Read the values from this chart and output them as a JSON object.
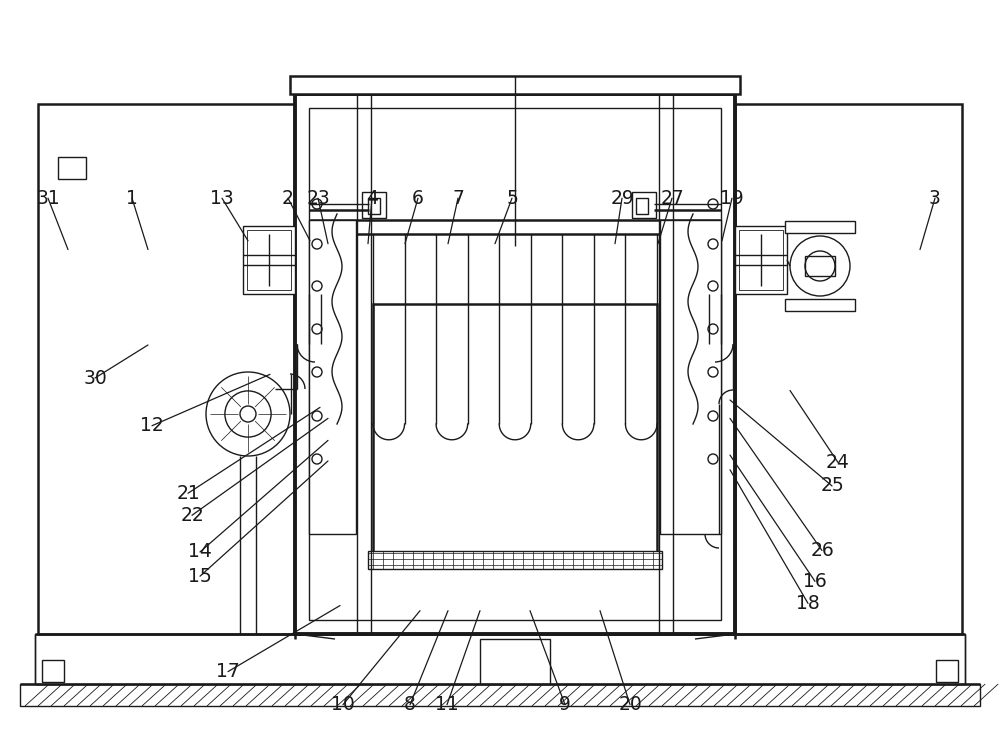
{
  "bg_color": "#ffffff",
  "line_color": "#1a1a1a",
  "lw": 1.0,
  "fig_w": 10.0,
  "fig_h": 7.34,
  "label_configs": {
    "10": [
      0.343,
      0.04,
      0.42,
      0.168
    ],
    "8": [
      0.41,
      0.04,
      0.448,
      0.168
    ],
    "11": [
      0.447,
      0.04,
      0.48,
      0.168
    ],
    "9": [
      0.565,
      0.04,
      0.53,
      0.168
    ],
    "20": [
      0.63,
      0.04,
      0.6,
      0.168
    ],
    "17": [
      0.228,
      0.085,
      0.34,
      0.175
    ],
    "18": [
      0.808,
      0.178,
      0.73,
      0.36
    ],
    "16": [
      0.815,
      0.208,
      0.73,
      0.38
    ],
    "26": [
      0.822,
      0.25,
      0.73,
      0.43
    ],
    "15": [
      0.2,
      0.215,
      0.328,
      0.372
    ],
    "14": [
      0.2,
      0.248,
      0.328,
      0.4
    ],
    "22": [
      0.192,
      0.298,
      0.328,
      0.43
    ],
    "21": [
      0.188,
      0.328,
      0.32,
      0.445
    ],
    "25": [
      0.832,
      0.338,
      0.73,
      0.455
    ],
    "24": [
      0.838,
      0.37,
      0.79,
      0.468
    ],
    "12": [
      0.152,
      0.42,
      0.27,
      0.49
    ],
    "30": [
      0.095,
      0.485,
      0.148,
      0.53
    ],
    "31": [
      0.048,
      0.73,
      0.068,
      0.66
    ],
    "1": [
      0.132,
      0.73,
      0.148,
      0.66
    ],
    "13": [
      0.222,
      0.73,
      0.248,
      0.672
    ],
    "2": [
      0.288,
      0.73,
      0.31,
      0.672
    ],
    "23": [
      0.318,
      0.73,
      0.328,
      0.668
    ],
    "4": [
      0.372,
      0.73,
      0.368,
      0.668
    ],
    "6": [
      0.418,
      0.73,
      0.405,
      0.668
    ],
    "7": [
      0.458,
      0.73,
      0.448,
      0.668
    ],
    "5": [
      0.512,
      0.73,
      0.495,
      0.668
    ],
    "29": [
      0.622,
      0.73,
      0.615,
      0.668
    ],
    "27": [
      0.672,
      0.73,
      0.658,
      0.668
    ],
    "19": [
      0.732,
      0.73,
      0.722,
      0.672
    ],
    "3": [
      0.935,
      0.73,
      0.92,
      0.66
    ]
  }
}
